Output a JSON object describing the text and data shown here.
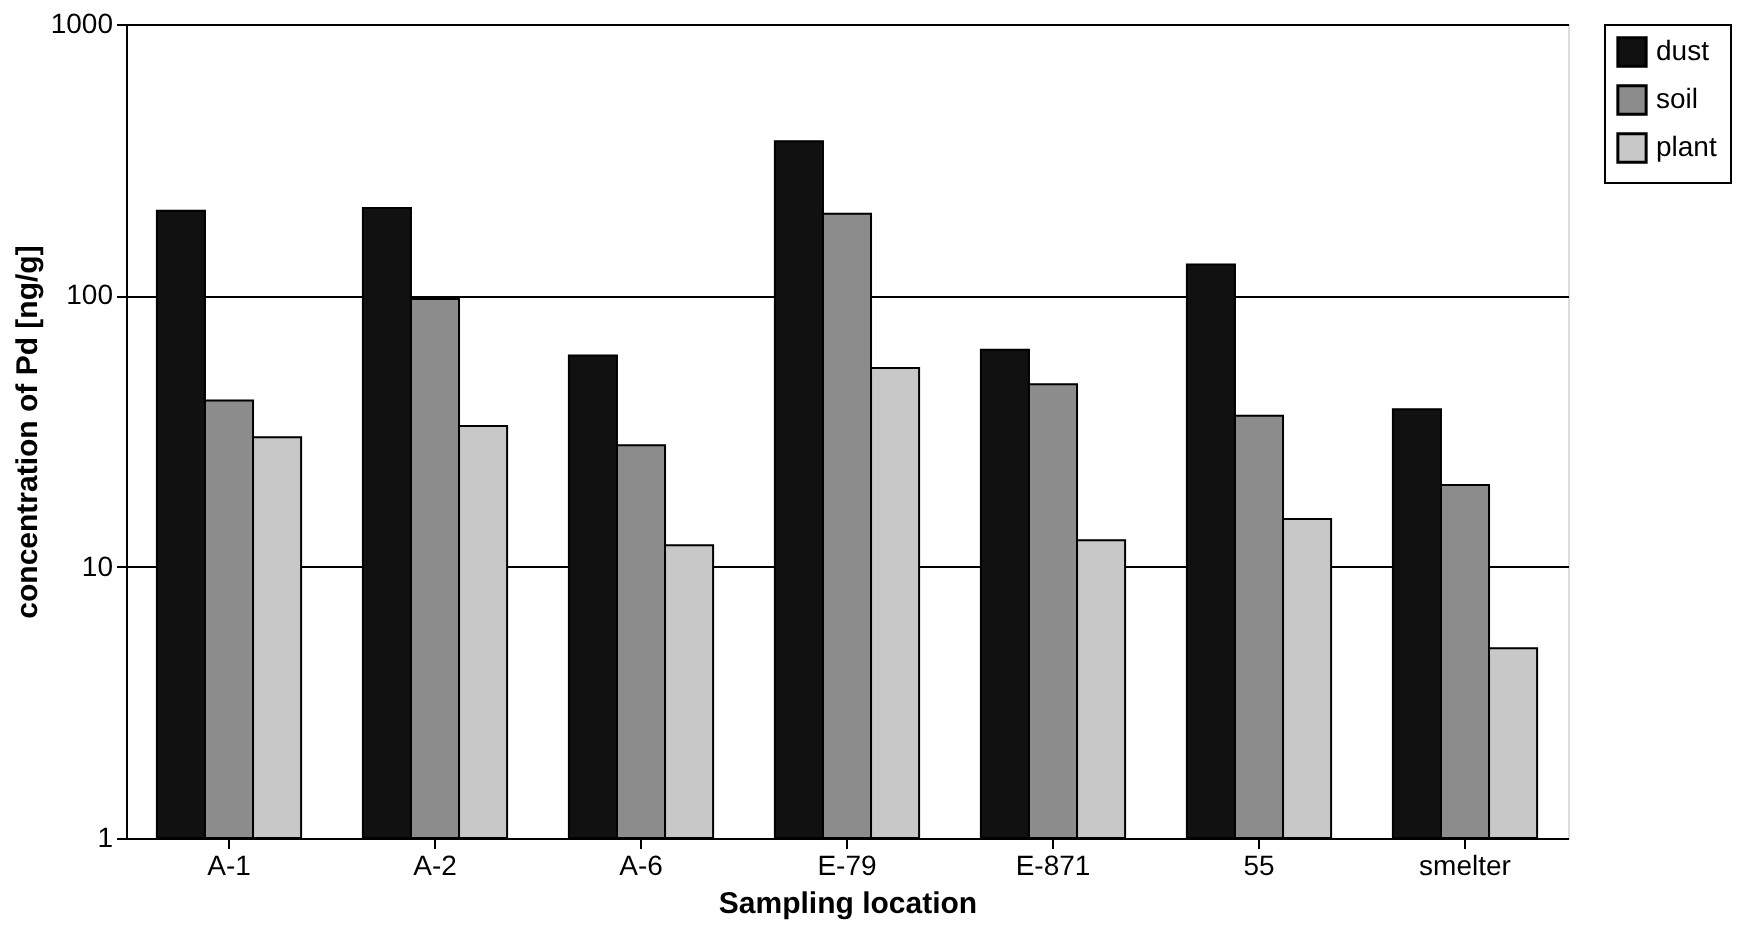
{
  "chart_data": {
    "type": "bar",
    "xlabel": "Sampling location",
    "ylabel": "concentration of Pd [ng/g]",
    "categories": [
      "A-1",
      "A-2",
      "A-6",
      "E-79",
      "E-871",
      "55",
      "smelter"
    ],
    "series": [
      {
        "name": "dust",
        "color": "#111111",
        "values": [
          205,
          210,
          60,
          370,
          63,
          130,
          38
        ]
      },
      {
        "name": "soil",
        "color": "#8c8c8c",
        "values": [
          41,
          97,
          28,
          200,
          47,
          36,
          20
        ]
      },
      {
        "name": "plant",
        "color": "#c8c8c8",
        "values": [
          30,
          33,
          12,
          54,
          12.5,
          15,
          5
        ]
      }
    ],
    "log": true,
    "ylim": [
      1,
      1000
    ],
    "yticks": [
      1,
      10,
      100,
      1000
    ],
    "grid": "y",
    "legend": "right"
  }
}
